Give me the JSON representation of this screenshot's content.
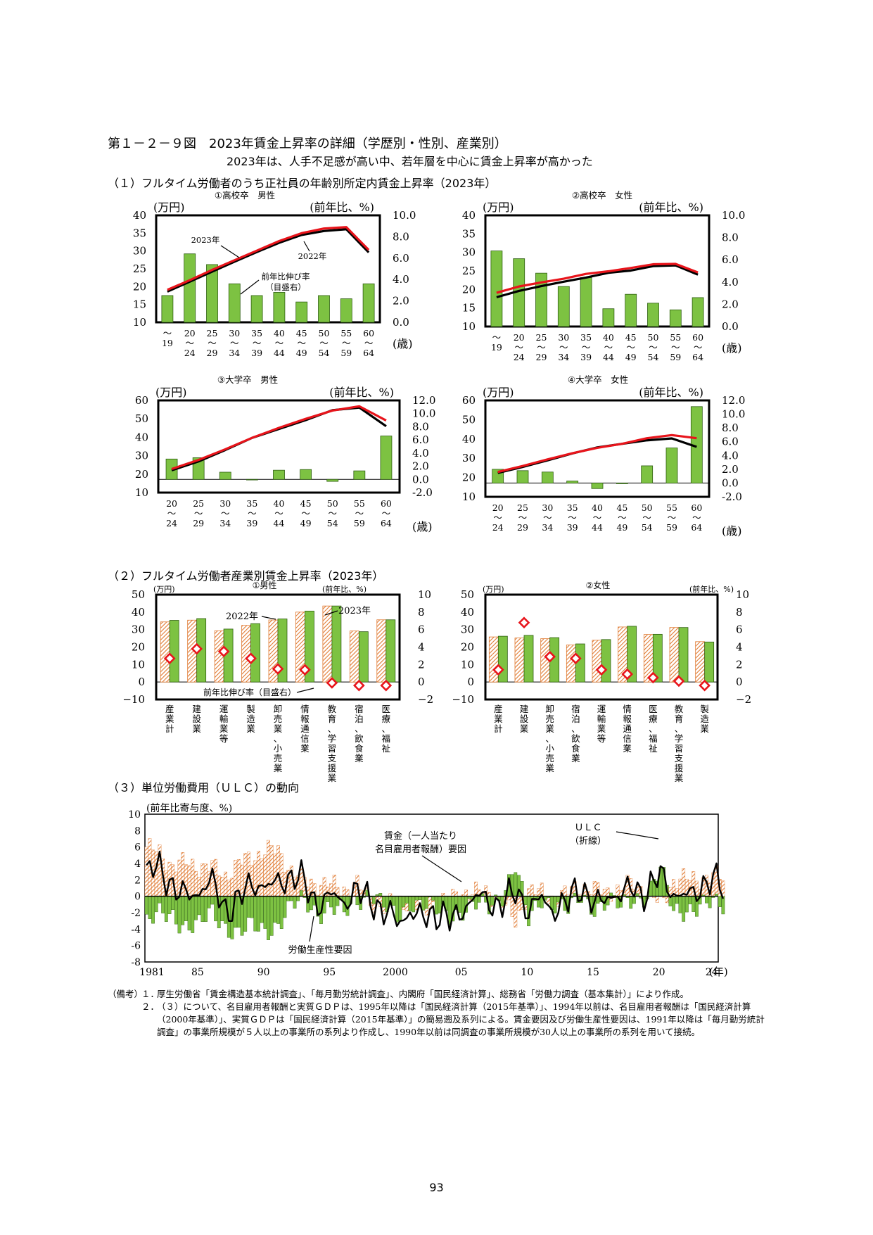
{
  "figure_title": "第１－２－９図　2023年賃金上昇率の詳細（学歴別・性別、産業別）",
  "figure_subtitle": "2023年は、人手不足感が高い中、若年層を中心に賃金上昇率が高かった",
  "section1_title": "（１）フルタイム労働者のうち正社員の年齢別所定内賃金上昇率（2023年）",
  "section2_title": "（２）フルタイム労働者産業別賃金上昇率（2023年）",
  "section3_title": "（３）単位労働費用（ＵＬＣ）の動向",
  "colors": {
    "bar_green": "#7dc242",
    "bar_edge": "#2f5f12",
    "line_2023": "#e8141b",
    "line_2022": "#000000",
    "hatch": "#e07a32",
    "diamond": "#e8141b"
  },
  "icon_names": [
    "diamond-marker-icon",
    "hatched-bar-icon"
  ],
  "chart_data": [
    {
      "id": "c11",
      "type": "bar_line",
      "title": "①高校卒　男性",
      "left_unit": "(万円)",
      "right_unit": "(前年比、%)",
      "x_unit": "(歳)",
      "categories": [
        [
          "～",
          "19"
        ],
        [
          "20",
          "～",
          "24"
        ],
        [
          "25",
          "～",
          "29"
        ],
        [
          "30",
          "～",
          "34"
        ],
        [
          "35",
          "～",
          "39"
        ],
        [
          "40",
          "～",
          "44"
        ],
        [
          "45",
          "～",
          "49"
        ],
        [
          "50",
          "～",
          "54"
        ],
        [
          "55",
          "～",
          "59"
        ],
        [
          "60",
          "～",
          "64"
        ]
      ],
      "ylim_left": [
        10,
        40
      ],
      "left_ticks": [
        "10",
        "15",
        "20",
        "25",
        "30",
        "35",
        "40"
      ],
      "ylim_right": [
        0,
        10
      ],
      "right_ticks": [
        "0.0",
        "2.0",
        "4.0",
        "6.0",
        "8.0",
        "10.0"
      ],
      "series": [
        {
          "name": "前年比伸び率（目盛右）",
          "kind": "bar",
          "axis": "right",
          "values": [
            2.5,
            6.4,
            5.4,
            3.6,
            2.5,
            2.8,
            1.9,
            2.5,
            2.2,
            3.6
          ]
        },
        {
          "name": "2023年",
          "kind": "line",
          "axis": "left",
          "values": [
            19.1,
            21.8,
            24.7,
            27.4,
            30.1,
            32.8,
            35.0,
            36.3,
            36.7,
            30.3
          ]
        },
        {
          "name": "2022年",
          "kind": "line",
          "axis": "left",
          "values": [
            18.6,
            21.4,
            24.2,
            27.0,
            29.7,
            32.3,
            34.5,
            35.6,
            36.1,
            29.6
          ]
        }
      ],
      "annotations": [
        "2023年",
        "2022年",
        "前年比伸び率",
        "（目盛右）"
      ]
    },
    {
      "id": "c12",
      "type": "bar_line",
      "title": "②高校卒　女性",
      "left_unit": "(万円)",
      "right_unit": "(前年比、%)",
      "x_unit": "(歳)",
      "categories": [
        [
          "～",
          "19"
        ],
        [
          "20",
          "～",
          "24"
        ],
        [
          "25",
          "～",
          "29"
        ],
        [
          "30",
          "～",
          "34"
        ],
        [
          "35",
          "～",
          "39"
        ],
        [
          "40",
          "～",
          "44"
        ],
        [
          "45",
          "～",
          "49"
        ],
        [
          "50",
          "～",
          "54"
        ],
        [
          "55",
          "～",
          "59"
        ],
        [
          "60",
          "～",
          "64"
        ]
      ],
      "ylim_left": [
        10,
        40
      ],
      "left_ticks": [
        "10",
        "15",
        "20",
        "25",
        "30",
        "35",
        "40"
      ],
      "ylim_right": [
        0,
        10
      ],
      "right_ticks": [
        "0.0",
        "2.0",
        "4.0",
        "6.0",
        "8.0",
        "10.0"
      ],
      "series": [
        {
          "name": "前年比伸び率",
          "kind": "bar",
          "axis": "right",
          "values": [
            6.8,
            6.1,
            4.8,
            3.6,
            4.4,
            1.6,
            2.9,
            2.1,
            1.5,
            2.6
          ]
        },
        {
          "name": "2023年",
          "kind": "line",
          "axis": "left",
          "values": [
            19.1,
            20.8,
            21.9,
            22.9,
            24.2,
            24.9,
            25.8,
            26.8,
            26.9,
            24.6
          ]
        },
        {
          "name": "2022年",
          "kind": "line",
          "axis": "left",
          "values": [
            17.9,
            19.6,
            20.9,
            22.1,
            23.2,
            24.5,
            25.1,
            26.3,
            26.5,
            24.0
          ]
        }
      ]
    },
    {
      "id": "c13",
      "type": "bar_line",
      "title": "③大学卒　男性",
      "left_unit": "(万円)",
      "right_unit": "(前年比、%)",
      "x_unit": "(歳)",
      "categories": [
        [
          "20",
          "～",
          "24"
        ],
        [
          "25",
          "～",
          "29"
        ],
        [
          "30",
          "～",
          "34"
        ],
        [
          "35",
          "～",
          "39"
        ],
        [
          "40",
          "～",
          "44"
        ],
        [
          "45",
          "～",
          "49"
        ],
        [
          "50",
          "～",
          "54"
        ],
        [
          "55",
          "～",
          "59"
        ],
        [
          "60",
          "～",
          "64"
        ]
      ],
      "ylim_left": [
        10,
        60
      ],
      "left_ticks": [
        "10",
        "20",
        "30",
        "40",
        "50",
        "60"
      ],
      "ylim_right": [
        -2,
        12
      ],
      "right_ticks": [
        "-2.0",
        "0.0",
        "2.0",
        "4.0",
        "6.0",
        "8.0",
        "10.0",
        "12.0"
      ],
      "series": [
        {
          "name": "前年比伸び率",
          "kind": "bar",
          "axis": "right",
          "values": [
            3.1,
            3.3,
            1.1,
            0.0,
            1.4,
            1.5,
            -0.3,
            1.3,
            6.6
          ]
        },
        {
          "name": "2023年",
          "kind": "line",
          "axis": "left",
          "values": [
            22.8,
            27.7,
            33.5,
            39.7,
            45.1,
            50.0,
            54.5,
            56.8,
            49.1
          ]
        },
        {
          "name": "2022年",
          "kind": "line",
          "axis": "left",
          "values": [
            22.1,
            26.9,
            33.1,
            39.7,
            44.5,
            49.3,
            54.7,
            56.1,
            46.0
          ]
        }
      ]
    },
    {
      "id": "c14",
      "type": "bar_line",
      "title": "④大学卒　女性",
      "left_unit": "(万円)",
      "right_unit": "(前年比、%)",
      "x_unit": "(歳)",
      "categories": [
        [
          "20",
          "～",
          "24"
        ],
        [
          "25",
          "～",
          "29"
        ],
        [
          "30",
          "～",
          "34"
        ],
        [
          "35",
          "～",
          "39"
        ],
        [
          "40",
          "～",
          "44"
        ],
        [
          "45",
          "～",
          "49"
        ],
        [
          "50",
          "～",
          "54"
        ],
        [
          "55",
          "～",
          "59"
        ],
        [
          "60",
          "～",
          "64"
        ]
      ],
      "ylim_left": [
        10,
        60
      ],
      "left_ticks": [
        "10",
        "20",
        "30",
        "40",
        "50",
        "60"
      ],
      "ylim_right": [
        -2,
        12
      ],
      "right_ticks": [
        "-2.0",
        "0.0",
        "2.0",
        "4.0",
        "6.0",
        "8.0",
        "10.0",
        "12.0"
      ],
      "series": [
        {
          "name": "前年比伸び率",
          "kind": "bar",
          "axis": "right",
          "values": [
            2.0,
            1.8,
            1.6,
            0.3,
            -0.8,
            -0.1,
            2.5,
            5.1,
            11.1
          ]
        },
        {
          "name": "2023年",
          "kind": "line",
          "axis": "left",
          "values": [
            22.9,
            26.0,
            29.4,
            32.6,
            35.4,
            37.5,
            40.4,
            42.0,
            40.4
          ]
        },
        {
          "name": "2022年",
          "kind": "line",
          "axis": "left",
          "values": [
            22.4,
            25.5,
            28.9,
            32.5,
            35.6,
            37.5,
            39.3,
            40.3,
            35.9
          ]
        }
      ]
    },
    {
      "id": "c21",
      "type": "bar_marker",
      "title": "①男性",
      "left_unit": "(万円)",
      "right_unit": "(前年比、%)",
      "categories": [
        [
          "産",
          "業",
          "計"
        ],
        [
          "建",
          "設",
          "業"
        ],
        [
          "運",
          "輸",
          "業",
          "等"
        ],
        [
          "製",
          "造",
          "業"
        ],
        [
          "卸",
          "売",
          "業",
          "、",
          "小",
          "売",
          "業"
        ],
        [
          "情",
          "報",
          "通",
          "信",
          "業"
        ],
        [
          "教",
          "育",
          "、",
          "学",
          "習",
          "支",
          "援",
          "業"
        ],
        [
          "宿",
          "泊",
          "、",
          "飲",
          "食",
          "業"
        ],
        [
          "医",
          "療",
          "、",
          "福",
          "祉"
        ]
      ],
      "ylim_left": [
        -10,
        50
      ],
      "left_ticks": [
        "−10",
        "0",
        "10",
        "20",
        "30",
        "40",
        "50"
      ],
      "ylim_right": [
        -2,
        10
      ],
      "right_ticks": [
        "−2",
        "0",
        "2",
        "4",
        "6",
        "8",
        "10"
      ],
      "series": [
        {
          "name": "2022年",
          "kind": "hatched_bar",
          "axis": "left",
          "values": [
            34.4,
            35.4,
            29.3,
            32.4,
            35.5,
            40.0,
            43.5,
            29.2,
            35.6
          ]
        },
        {
          "name": "2023年",
          "kind": "bar",
          "axis": "left",
          "values": [
            35.3,
            36.3,
            30.3,
            33.4,
            36.1,
            40.6,
            43.5,
            28.8,
            35.6
          ]
        },
        {
          "name": "前年比伸び率（目盛右）",
          "kind": "marker",
          "axis": "right",
          "values": [
            2.7,
            3.8,
            3.5,
            2.7,
            1.5,
            1.4,
            -0.1,
            -0.4,
            -0.4
          ]
        }
      ],
      "annotations": [
        "2022年",
        "2023年",
        "前年比伸び率（目盛右）"
      ]
    },
    {
      "id": "c22",
      "type": "bar_marker",
      "title": "②女性",
      "left_unit": "(万円)",
      "right_unit": "(前年比、%)",
      "categories": [
        [
          "産",
          "業",
          "計"
        ],
        [
          "建",
          "設",
          "業"
        ],
        [
          "卸",
          "売",
          "業",
          "、",
          "小",
          "売",
          "業"
        ],
        [
          "宿",
          "泊",
          "、",
          "飲",
          "食",
          "業"
        ],
        [
          "運",
          "輸",
          "業",
          "等"
        ],
        [
          "情",
          "報",
          "通",
          "信",
          "業"
        ],
        [
          "医",
          "療",
          "、",
          "福",
          "祉"
        ],
        [
          "教",
          "育",
          "、",
          "学",
          "習",
          "支",
          "援",
          "業"
        ],
        [
          "製",
          "造",
          "業"
        ]
      ],
      "ylim_left": [
        -10,
        50
      ],
      "left_ticks": [
        "−10",
        "0",
        "10",
        "20",
        "30",
        "40",
        "50"
      ],
      "ylim_right": [
        -2,
        10
      ],
      "right_ticks": [
        "−2",
        "0",
        "2",
        "4",
        "6",
        "8",
        "10"
      ],
      "series": [
        {
          "name": "2022年",
          "kind": "hatched_bar",
          "axis": "left",
          "values": [
            25.8,
            25.2,
            24.8,
            21.2,
            23.9,
            31.5,
            27.2,
            31.2,
            23.1
          ]
        },
        {
          "name": "2023年",
          "kind": "bar",
          "axis": "left",
          "values": [
            26.2,
            26.7,
            25.4,
            21.8,
            24.3,
            31.9,
            27.3,
            31.2,
            22.9
          ]
        },
        {
          "name": "前年比伸び率",
          "kind": "marker",
          "axis": "right",
          "values": [
            1.4,
            6.8,
            2.9,
            2.7,
            1.4,
            0.9,
            0.5,
            0.1,
            -0.4
          ]
        }
      ]
    },
    {
      "id": "c3",
      "type": "bar_line",
      "title": "",
      "left_unit": "(前年比寄与度、%)",
      "x_unit": "(年)",
      "ylim": [
        -8,
        10
      ],
      "ticks": [
        "-8",
        "-6",
        "-4",
        "-2",
        "0",
        "2",
        "4",
        "6",
        "8",
        "10"
      ],
      "xlim": [
        1981,
        2024.5
      ],
      "x_ticks": [
        "1981",
        "85",
        "90",
        "95",
        "2000",
        "05",
        "10",
        "15",
        "20",
        "24"
      ],
      "x_tick_years": [
        1981,
        1985,
        1990,
        1995,
        2000,
        2005,
        2010,
        2015,
        2020,
        2024
      ],
      "series": [
        {
          "name": "賃金（一人当たり名目雇用者報酬）要因",
          "kind": "hatched_bar",
          "annual_level": [
            6.0,
            5.2,
            3.8,
            4.0,
            3.7,
            3.5,
            2.6,
            3.9,
            4.8,
            5.6,
            5.5,
            3.2,
            1.9,
            1.6,
            1.3,
            1.0,
            1.4,
            -0.5,
            -1.3,
            -0.5,
            -0.7,
            -1.8,
            -0.7,
            -0.5,
            0.6,
            0.4,
            0.5,
            -0.7,
            -3.2,
            0.8,
            0.3,
            -0.4,
            0.5,
            1.3,
            0.7,
            0.6,
            0.8,
            1.7,
            0.5,
            -1.1,
            2.0,
            2.0,
            2.3,
            2.3
          ]
        },
        {
          "name": "労働生産性要因",
          "kind": "bar",
          "annual_level": [
            -3.2,
            -2.5,
            -2.3,
            -3.4,
            -3.7,
            -2.1,
            -3.4,
            -4.5,
            -3.9,
            -4.1,
            -3.2,
            -1.4,
            -0.6,
            -1.8,
            -1.3,
            -2.4,
            -0.4,
            0.8,
            -1.4,
            -2.8,
            -0.4,
            -1.0,
            -2.0,
            -2.2,
            -1.5,
            -1.2,
            -1.4,
            0.5,
            3.8,
            -3.3,
            -0.1,
            -0.7,
            -1.9,
            -0.2,
            -1.1,
            -0.6,
            -1.5,
            -0.1,
            0.4,
            3.1,
            -1.9,
            -1.3,
            -1.3,
            -1.1
          ]
        },
        {
          "name": "ＵＬＣ（折線）",
          "kind": "line",
          "note": "sum of the two factors"
        }
      ],
      "annotations": [
        "賃金（一人当たり",
        "名目雇用者報酬）要因",
        "ＵＬＣ",
        "（折線）",
        "労働生産性要因"
      ]
    }
  ],
  "notes": {
    "label": "（備考）",
    "items": [
      {
        "num": "１．",
        "text": "厚生労働省「賃金構造基本統計調査」、「毎月勤労統計調査」、内閣府「国民経済計算」、総務省「労働力調査（基本集計）」により作成。"
      },
      {
        "num": "２．",
        "text": "（３）について、名目雇用者報酬と実質ＧＤＰは、1995年以降は「国民経済計算（2015年基準）」、1994年以前は、名目雇用者報酬は「国民経済計算（2000年基準）」、実質ＧＤＰは「国民経済計算（2015年基準）」の簡易遡及系列による。賃金要因及び労働生産性要因は、1991年以降は「毎月勤労統計調査」の事業所規模が５人以上の事業所の系列より作成し、1990年以前は同調査の事業所規模が30人以上の事業所の系列を用いて接続。"
      }
    ]
  },
  "page_number": "93"
}
